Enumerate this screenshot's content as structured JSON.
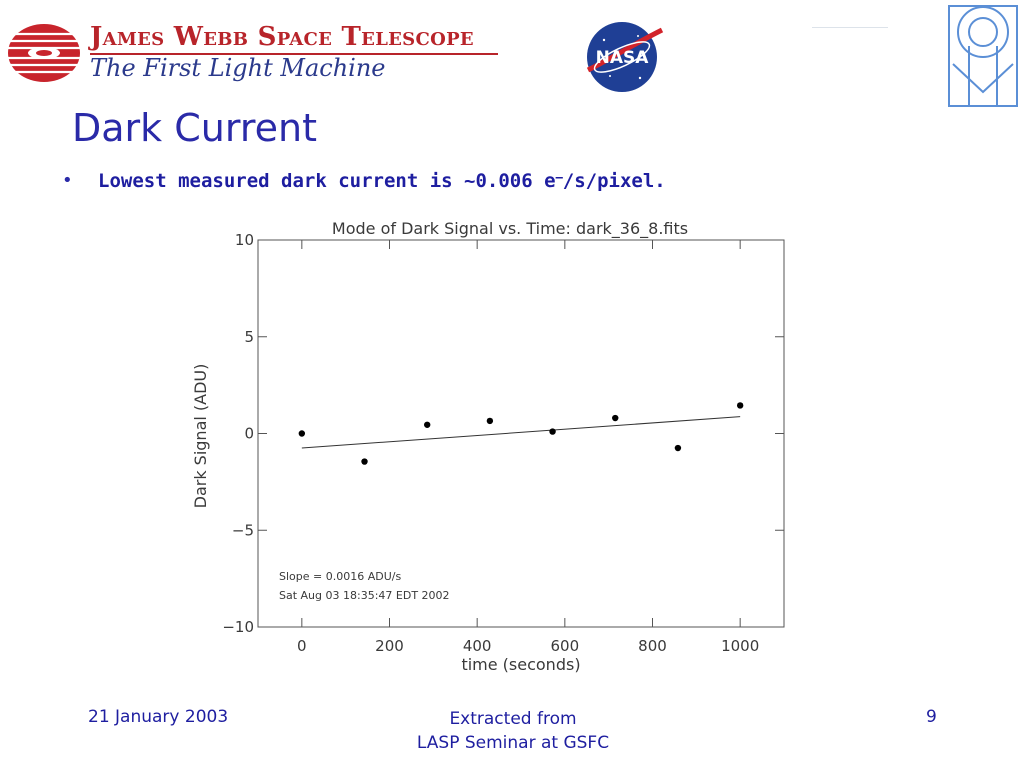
{
  "header": {
    "brand_title": "James Webb Space Telescope",
    "brand_subtitle": "The First Light Machine",
    "nasa_logo_text": "NASA",
    "logos": [
      "jwst-logo",
      "nasa-logo",
      "stsci-logo"
    ]
  },
  "slide": {
    "title": "Dark Current",
    "bullet_prefix": "Lowest measured dark current is ~0.006 e",
    "bullet_sup": "–",
    "bullet_suffix": "/s/pixel."
  },
  "chart_data": {
    "type": "scatter",
    "title": "Mode of Dark Signal vs. Time: dark_36_8.fits",
    "xlabel": "time (seconds)",
    "ylabel": "Dark Signal (ADU)",
    "xlim": [
      -100,
      1100
    ],
    "ylim": [
      -10,
      10
    ],
    "xticks": [
      0,
      200,
      400,
      600,
      800,
      1000
    ],
    "yticks": [
      10,
      5,
      0,
      -5,
      -10
    ],
    "xtick_labels": [
      "0",
      "200",
      "400",
      "600",
      "800",
      "1000"
    ],
    "ytick_labels": [
      "10",
      "5",
      "0",
      "−5",
      "−10"
    ],
    "points": [
      {
        "x": 0,
        "y": 0.0
      },
      {
        "x": 143,
        "y": -1.45
      },
      {
        "x": 286,
        "y": 0.45
      },
      {
        "x": 429,
        "y": 0.65
      },
      {
        "x": 572,
        "y": 0.1
      },
      {
        "x": 715,
        "y": 0.8
      },
      {
        "x": 858,
        "y": -0.75
      },
      {
        "x": 1000,
        "y": 1.45
      }
    ],
    "fit_line": {
      "x": [
        0,
        1000
      ],
      "y": [
        -0.75,
        0.87
      ]
    },
    "grid": false,
    "annotations": [
      "Slope = 0.0016 ADU/s",
      "Sat Aug 03 18:35:47 EDT 2002"
    ]
  },
  "footer": {
    "date": "21 January 2003",
    "source_line1": "Extracted from",
    "source_line2": "LASP Seminar at GSFC",
    "page_number": "9"
  }
}
